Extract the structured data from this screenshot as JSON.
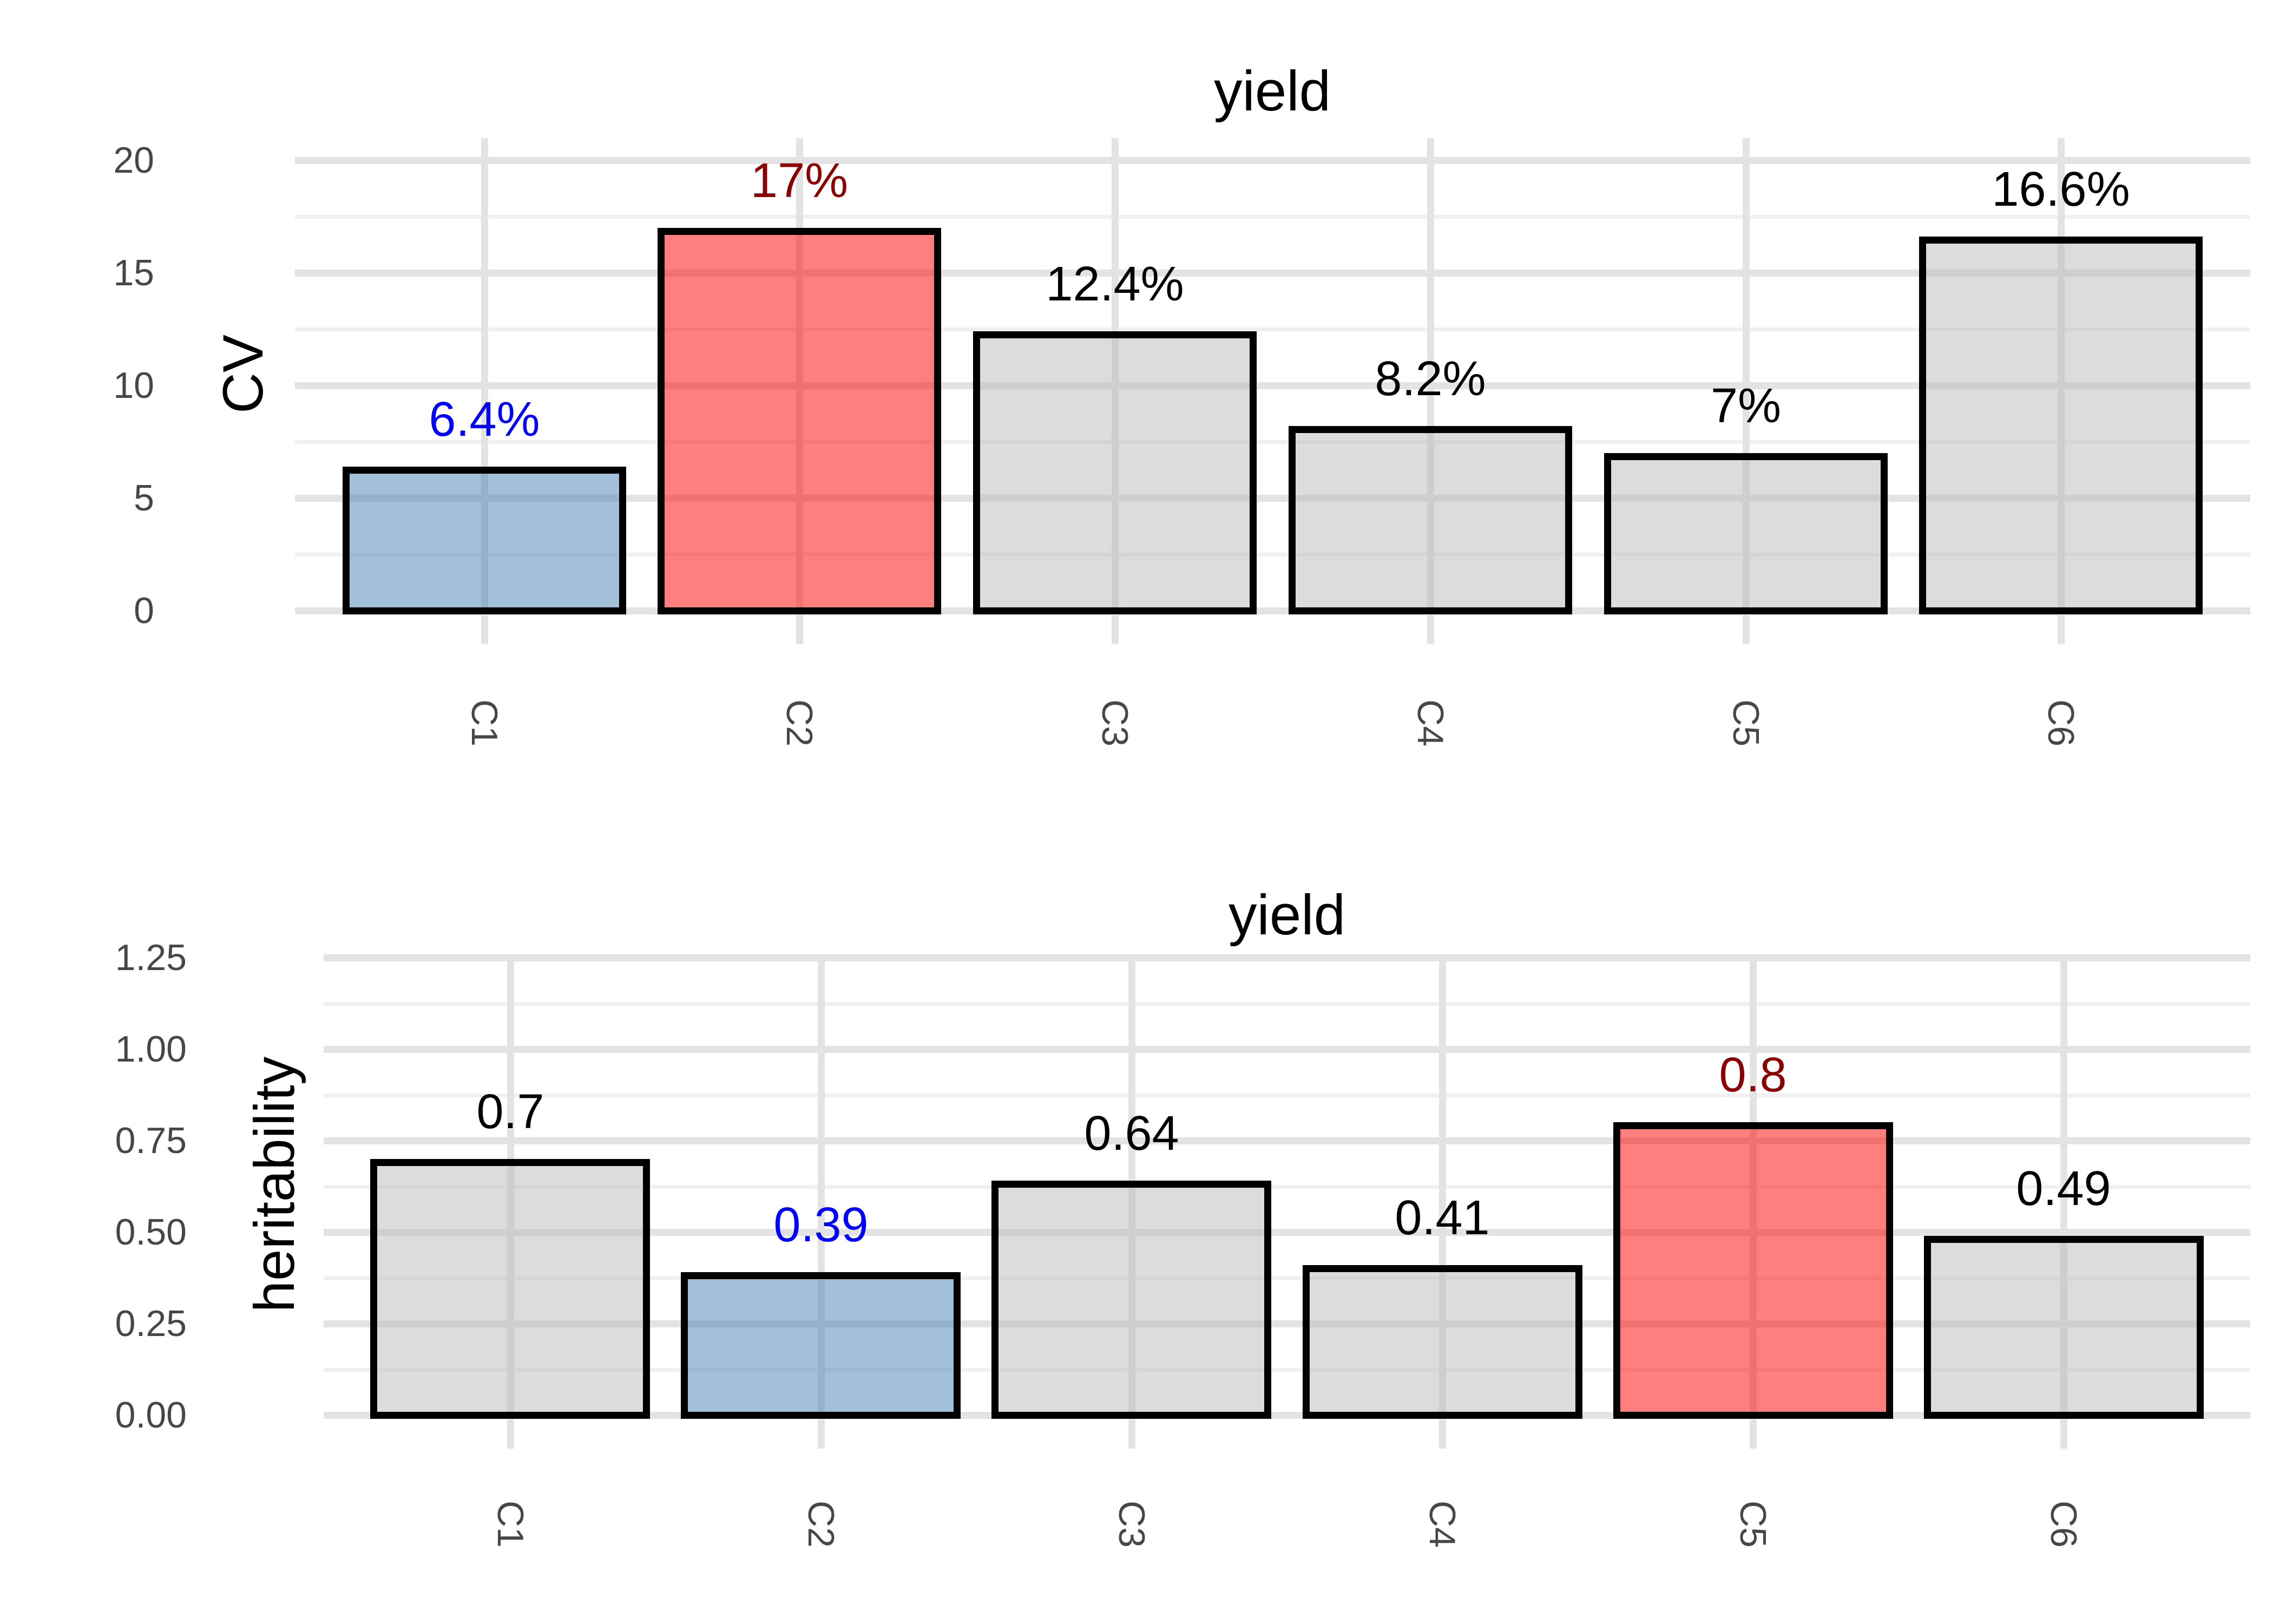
{
  "figure": {
    "background": "#FFFFFF"
  },
  "colors": {
    "bar_fill_default": "rgba(186,186,186,0.5)",
    "bar_fill_min": "rgba(70,130,180,0.5)",
    "bar_fill_max": "rgba(255,0,0,0.5)",
    "bar_fill_default_hex": "#DCDCDC",
    "bar_fill_min_hex": "#A3C1DA",
    "bar_fill_max_hex": "#FF8080",
    "bar_outline": "#000000",
    "label_default": "#000000",
    "label_min": "#0000FF",
    "label_max": "#8B0000",
    "grid_major": "#E3E3E3",
    "grid_minor": "#F0F0F0",
    "tick_text": "#474747",
    "title_text": "#000000"
  },
  "chart_data": [
    {
      "type": "bar",
      "title": "yield",
      "xlabel": "",
      "ylabel": "CV",
      "categories": [
        "C1",
        "C2",
        "C3",
        "C4",
        "C5",
        "C6"
      ],
      "values": [
        6.4,
        17,
        12.4,
        8.2,
        7,
        16.6
      ],
      "bar_labels": [
        "6.4%",
        "17%",
        "12.4%",
        "8.2%",
        "7%",
        "16.6%"
      ],
      "bar_roles": [
        "min",
        "max",
        "default",
        "default",
        "default",
        "default"
      ],
      "y_ticks": [
        "0",
        "5",
        "10",
        "15",
        "20"
      ],
      "y_tick_values": [
        0,
        5,
        10,
        15,
        20
      ],
      "y_minor_values": [
        2.5,
        7.5,
        12.5,
        17.5
      ],
      "ylim": [
        0,
        21
      ],
      "grid": "major+minor",
      "legend": "none",
      "x_labels_rotated": true
    },
    {
      "type": "bar",
      "title": "yield",
      "xlabel": "",
      "ylabel": "heritability",
      "categories": [
        "C1",
        "C2",
        "C3",
        "C4",
        "C5",
        "C6"
      ],
      "values": [
        0.7,
        0.39,
        0.64,
        0.41,
        0.8,
        0.49
      ],
      "bar_labels": [
        "0.7",
        "0.39",
        "0.64",
        "0.41",
        "0.8",
        "0.49"
      ],
      "bar_roles": [
        "default",
        "min",
        "default",
        "default",
        "max",
        "default"
      ],
      "y_ticks": [
        "0.00",
        "0.25",
        "0.50",
        "0.75",
        "1.00",
        "1.25"
      ],
      "y_tick_values": [
        0,
        0.25,
        0.5,
        0.75,
        1.0,
        1.25
      ],
      "y_minor_values": [
        0.125,
        0.375,
        0.625,
        0.875,
        1.125
      ],
      "ylim": [
        0,
        1.31
      ],
      "grid": "major+minor",
      "legend": "none",
      "x_labels_rotated": true
    }
  ]
}
